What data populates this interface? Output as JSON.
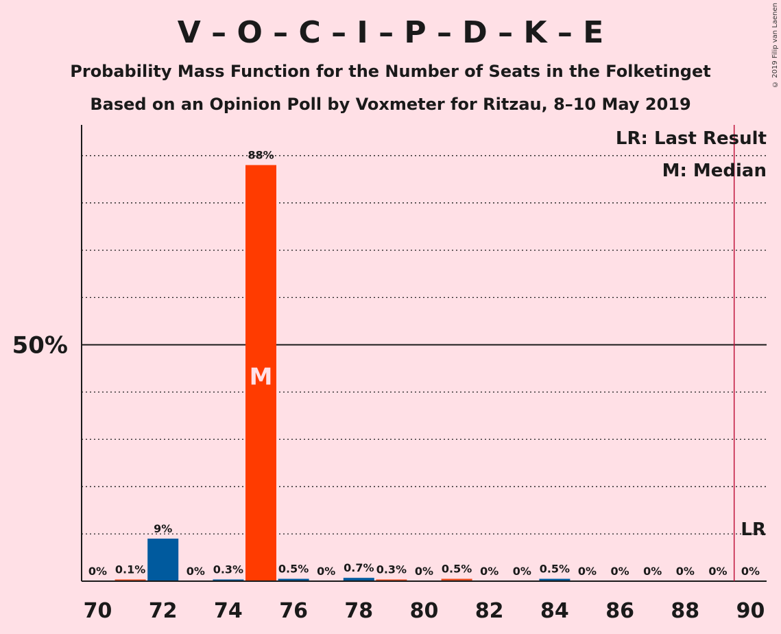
{
  "header": {
    "title": "V – O – C – I – P – D – K – E",
    "subtitle1": "Probability Mass Function for the Number of Seats in the Folketinget",
    "subtitle2": "Based on an Opinion Poll by Voxmeter for Ritzau, 8–10 May 2019",
    "copyright": "© 2019 Filip van Laenen"
  },
  "legend": {
    "last_result": "LR: Last Result",
    "median": "M: Median"
  },
  "markers": {
    "median_letter": "M",
    "median_seat": 75,
    "last_result_letter": "LR",
    "last_result_seat": 90
  },
  "chart_data": {
    "type": "bar",
    "x": [
      70,
      71,
      72,
      73,
      74,
      75,
      76,
      77,
      78,
      79,
      80,
      81,
      82,
      83,
      84,
      85,
      86,
      87,
      88,
      89,
      90
    ],
    "values": [
      0,
      0.1,
      9,
      0,
      0.3,
      88,
      0.5,
      0,
      0.7,
      0.3,
      0,
      0.5,
      0,
      0,
      0.5,
      0,
      0,
      0,
      0,
      0,
      0
    ],
    "labels": [
      "0%",
      "0.1%",
      "9%",
      "0%",
      "0.3%",
      "88%",
      "0.5%",
      "0%",
      "0.7%",
      "0.3%",
      "0%",
      "0.5%",
      "0%",
      "0%",
      "0.5%",
      "0%",
      "0%",
      "0%",
      "0%",
      "0%",
      "0%"
    ],
    "x_ticks": [
      70,
      72,
      74,
      76,
      78,
      80,
      82,
      84,
      86,
      88,
      90
    ],
    "y_tick_label": "50%",
    "y_tick_value": 50,
    "ylim": [
      0,
      96.5
    ],
    "grid": "dotted every 10%",
    "colors": {
      "blue": "#005A9E",
      "red": "#E84C1F",
      "median_bar": "#FF3B00",
      "last_result_line": "#C0143C",
      "background": "#FFE0E6"
    }
  }
}
